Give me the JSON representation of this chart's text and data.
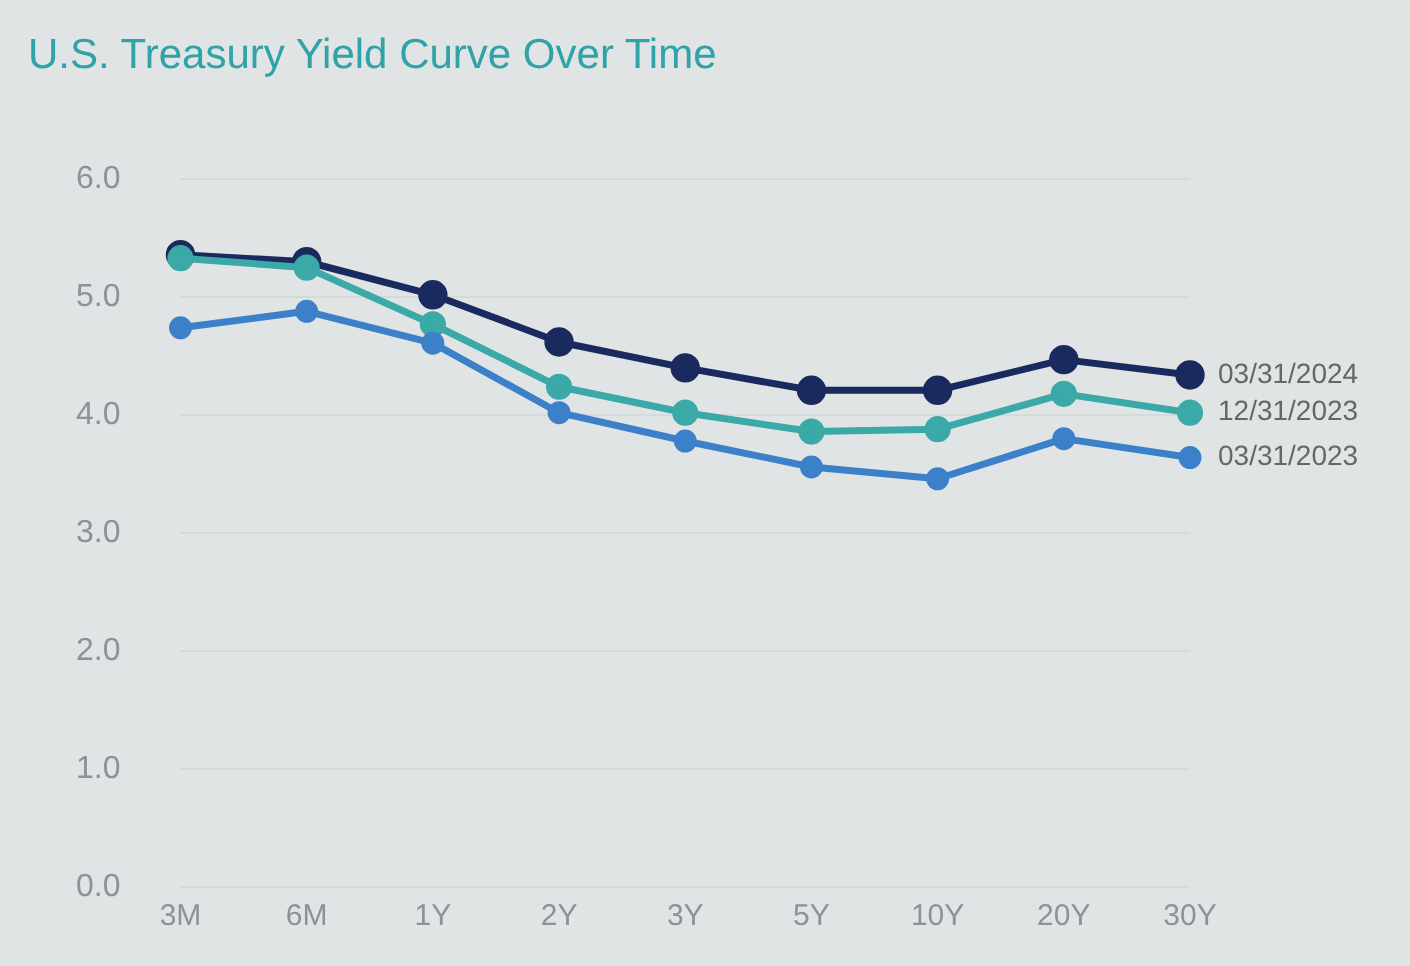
{
  "chart_data": {
    "type": "line",
    "title": "U.S. Treasury Yield Curve Over Time",
    "categories": [
      "3M",
      "6M",
      "1Y",
      "2Y",
      "3Y",
      "5Y",
      "10Y",
      "20Y",
      "30Y"
    ],
    "series": [
      {
        "name": "03/31/2024",
        "color": "#1b2a5e",
        "values": [
          5.36,
          5.3,
          5.02,
          4.62,
          4.4,
          4.21,
          4.21,
          4.47,
          4.34
        ]
      },
      {
        "name": "12/31/2023",
        "color": "#3aa9a7",
        "values": [
          5.33,
          5.25,
          4.77,
          4.24,
          4.02,
          3.86,
          3.88,
          4.18,
          4.02
        ]
      },
      {
        "name": "03/31/2023",
        "color": "#3b80c9",
        "values": [
          4.74,
          4.88,
          4.61,
          4.02,
          3.78,
          3.56,
          3.46,
          3.8,
          3.64
        ]
      }
    ],
    "ylim": [
      0,
      6
    ],
    "yticks": [
      {
        "value": 0,
        "label": "0.0"
      },
      {
        "value": 1,
        "label": "1.0"
      },
      {
        "value": 2,
        "label": "2.0"
      },
      {
        "value": 3,
        "label": "3.0"
      },
      {
        "value": 4,
        "label": "4.0"
      },
      {
        "value": 5,
        "label": "5.0"
      },
      {
        "value": 6,
        "label": "6.0"
      }
    ],
    "grid": "y",
    "legend": false,
    "marker": "circle",
    "line_style": "solid"
  }
}
